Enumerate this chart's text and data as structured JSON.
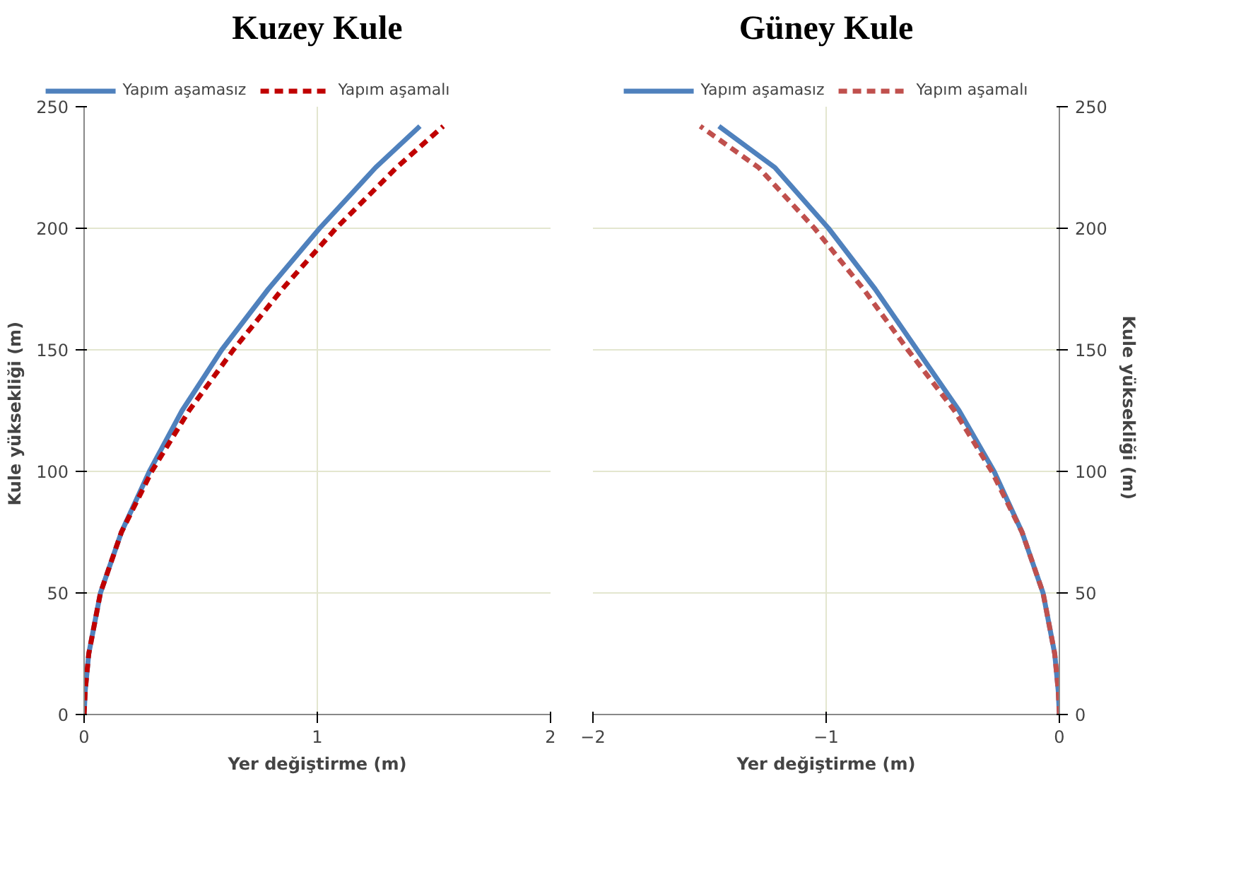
{
  "chart_data": [
    {
      "type": "line",
      "title": "Kuzey Kule",
      "xlabel": "Yer değiştirme (m)",
      "ylabel": "Kule yüksekliği  (m)",
      "xlim": [
        0,
        2
      ],
      "xticks": [
        0,
        1,
        2
      ],
      "ylim": [
        0,
        250
      ],
      "yticks": [
        0,
        50,
        100,
        150,
        200,
        250
      ],
      "grid": true,
      "legend": "top",
      "series": [
        {
          "name": "Yapım aşamasız",
          "color": "#4f81bd",
          "line_style": "solid",
          "x": [
            0,
            0.005,
            0.02,
            0.07,
            0.16,
            0.28,
            0.42,
            0.59,
            0.79,
            1.01,
            1.25,
            1.44
          ],
          "values": [
            0,
            10,
            25,
            50,
            75,
            100,
            125,
            150,
            175,
            200,
            225,
            242
          ]
        },
        {
          "name": "Yapım aşamalı",
          "color": "#c00000",
          "line_style": "dashed",
          "x": [
            0,
            0.005,
            0.02,
            0.07,
            0.16,
            0.29,
            0.45,
            0.64,
            0.85,
            1.08,
            1.34,
            1.54
          ],
          "values": [
            0,
            10,
            25,
            50,
            75,
            100,
            125,
            150,
            175,
            200,
            225,
            242
          ]
        }
      ]
    },
    {
      "type": "line",
      "title": "Güney Kule",
      "xlabel": "Yer değiştirme (m)",
      "y2label": "Kule yüksekliği  (m)",
      "xlim": [
        -2,
        0
      ],
      "xticks": [
        -2,
        -1,
        0
      ],
      "y2lim": [
        0,
        250
      ],
      "y2ticks": [
        0,
        50,
        100,
        150,
        200,
        250
      ],
      "grid": true,
      "legend": "top",
      "series": [
        {
          "name": "Yapım aşamasız",
          "color": "#4f81bd",
          "line_style": "solid",
          "axis": "y2",
          "x": [
            0,
            -0.005,
            -0.02,
            -0.07,
            -0.16,
            -0.28,
            -0.43,
            -0.61,
            -0.79,
            -0.99,
            -1.22,
            -1.46
          ],
          "values": [
            0,
            10,
            25,
            50,
            75,
            100,
            125,
            150,
            175,
            200,
            225,
            242
          ]
        },
        {
          "name": "Yapım aşamalı",
          "color": "#c0504d",
          "line_style": "dashed",
          "axis": "y2",
          "x": [
            0,
            -0.005,
            -0.02,
            -0.07,
            -0.16,
            -0.29,
            -0.45,
            -0.65,
            -0.84,
            -1.05,
            -1.29,
            -1.54
          ],
          "values": [
            0,
            10,
            25,
            50,
            75,
            100,
            125,
            150,
            175,
            200,
            225,
            242
          ]
        }
      ]
    }
  ]
}
